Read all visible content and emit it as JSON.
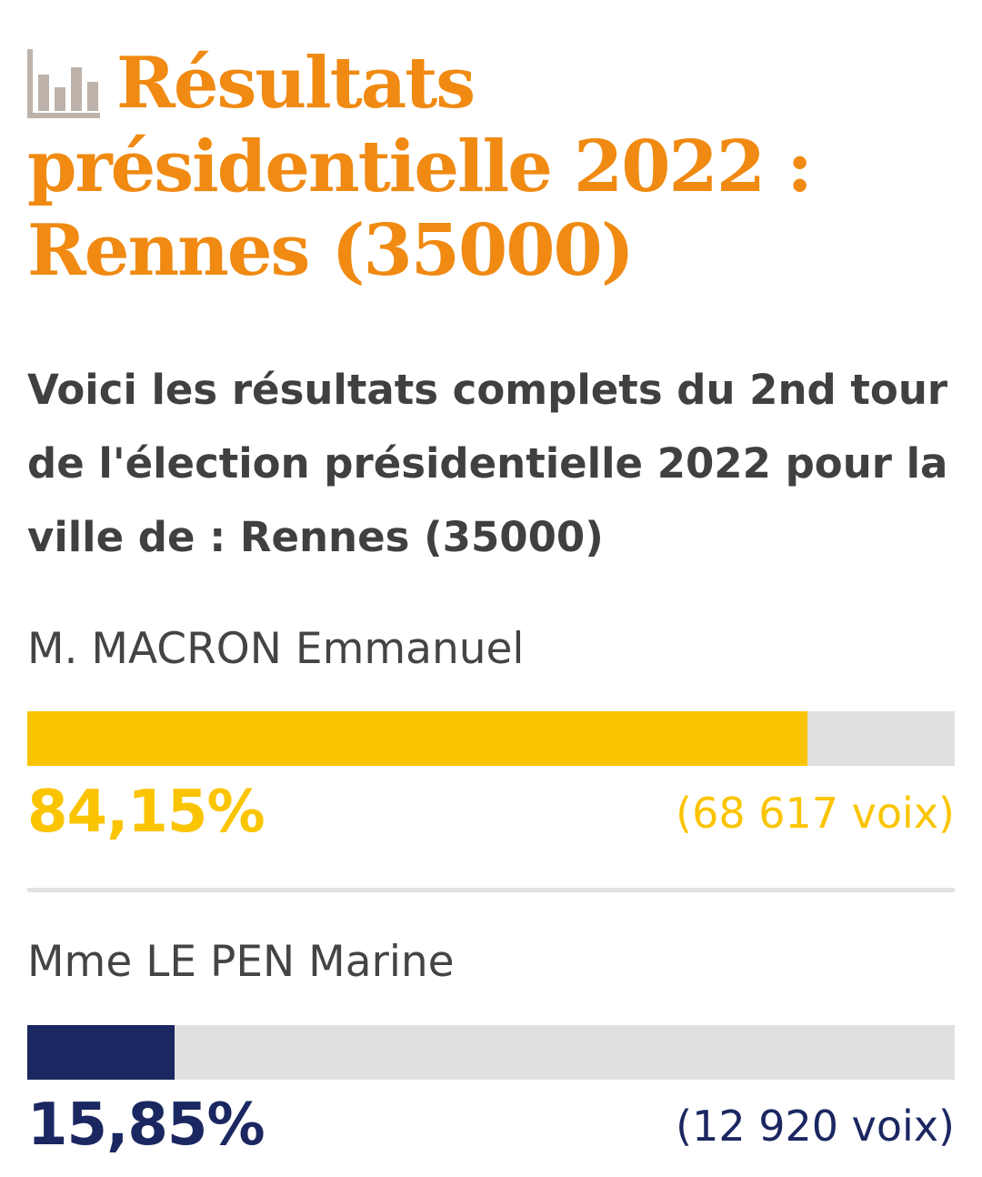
{
  "header": {
    "icon": "bar-chart-icon",
    "title": "Résultats présidentielle 2022 : Rennes (35000)",
    "subtitle": "Voici les résultats complets du 2nd tour de l'élection présidentielle 2022 pour la ville de : Rennes (35000)"
  },
  "colors": {
    "title": "#f08a12",
    "text": "#404040",
    "track": "#e0e0e0",
    "macron": "#fbc400",
    "lepen": "#1b2760"
  },
  "chart_data": {
    "type": "bar",
    "orientation": "horizontal",
    "xlim": [
      0,
      100
    ],
    "categories": [
      "M. MACRON Emmanuel",
      "Mme LE PEN Marine"
    ],
    "values": [
      84.15,
      15.85
    ],
    "labels": [
      "84,15%",
      "15,85%"
    ],
    "votes": [
      "(68 617 voix)",
      "(12 920 voix)"
    ]
  }
}
